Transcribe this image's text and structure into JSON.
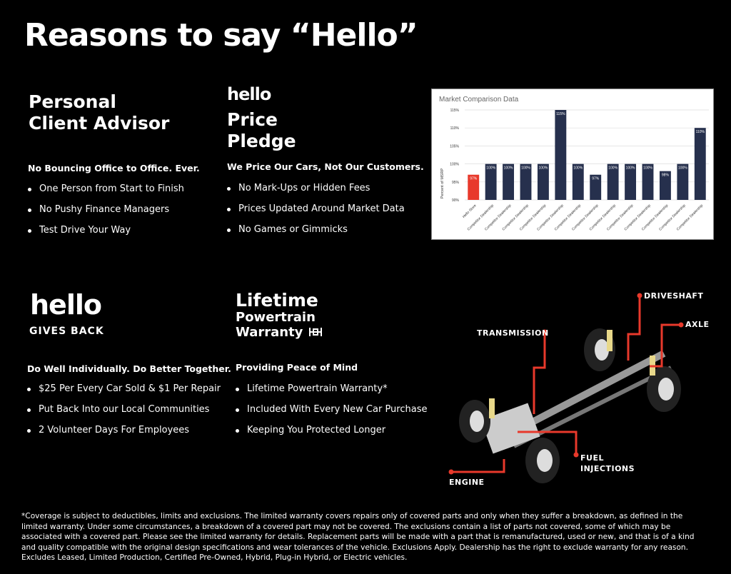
{
  "title": "Reasons to say “Hello”",
  "sections": [
    {
      "heading_lines": [
        "Personal",
        "Client Advisor"
      ],
      "subheading": "No Bouncing Office to Office. Ever.",
      "bullets": [
        "One Person from Start to Finish",
        "No Pushy Finance Managers",
        "Test Drive Your Way"
      ]
    },
    {
      "logo": "hello",
      "heading_lines": [
        "Price",
        "Pledge"
      ],
      "subheading": "We Price Our Cars, Not Our Customers.",
      "bullets": [
        "No Mark-Ups or Hidden Fees",
        "Prices Updated Around Market Data",
        "No Games or Gimmicks"
      ]
    },
    {
      "logo": "hello",
      "logo_sub": "GIVES BACK",
      "subheading": "Do Well Individually. Do Better Together.",
      "bullets": [
        "$25 Per Every Car Sold & $1 Per Repair",
        "Put Back Into our Local Communities",
        "2 Volunteer Days For Employees"
      ]
    },
    {
      "heading_lines": [
        "Lifetime",
        "Powertrain",
        "Warranty"
      ],
      "subheading": "Providing Peace of Mind",
      "bullets": [
        "Lifetime Powertrain Warranty*",
        "Included With Every New Car Purchase",
        "Keeping You Protected Longer"
      ]
    }
  ],
  "chart_data": {
    "type": "bar",
    "title": "Market Comparison Data",
    "ylabel": "Percent of MSRP",
    "xlabel": "",
    "categories": [
      "Hello Store",
      "Competitor Dealership",
      "Competitor Dealership",
      "Competitor Dealership",
      "Competitor Dealership",
      "Competitor Dealership",
      "Competitor Dealership",
      "Competitor Dealership",
      "Competitor Dealership",
      "Competitor Dealership",
      "Competitor Dealership",
      "Competitor Dealership",
      "Competitor Dealership",
      "Competitor Dealership"
    ],
    "values": [
      97,
      100,
      100,
      100,
      100,
      115,
      100,
      97,
      100,
      100,
      100,
      98,
      100,
      110
    ],
    "data_labels": [
      "97%",
      "100%",
      "100%",
      "100%",
      "100%",
      "115%",
      "100%",
      "97%",
      "100%",
      "100%",
      "100%",
      "98%",
      "100%",
      "110%"
    ],
    "ylim": [
      90,
      115
    ],
    "yticks": [
      "90%",
      "95%",
      "100%",
      "105%",
      "110%",
      "115%"
    ],
    "colors": {
      "highlight": "#e8392b",
      "bars": "#26304d"
    },
    "grid": true,
    "legend": "none"
  },
  "diagram": {
    "labels": {
      "driveshaft": "DRIVESHAFT",
      "axle": "AXLE",
      "transmission": "TRANSMISSION",
      "fuel": "FUEL",
      "injections": "INJECTIONS",
      "engine": "ENGINE"
    },
    "accent": "#e8392b"
  },
  "footnote": "*Coverage is subject to deductibles, limits and exclusions. The limited warranty covers repairs only of covered parts and only when they suffer a breakdown, as defined in the limited warranty. Under some circumstances, a breakdown of a covered part may not be covered. The exclusions contain a list of parts not covered, some of which may be associated with a covered part. Please see the limited warranty for details. Replacement parts will be made with a part that is remanufactured, used or new, and that is of a kind and quality compatible with the original design specifications and wear tolerances of the vehicle. Exclusions Apply. Dealership has the right to exclude warranty for any reason. Excludes Leased, Limited Production, Certified Pre-Owned, Hybrid, Plug-in Hybrid, or Electric vehicles."
}
